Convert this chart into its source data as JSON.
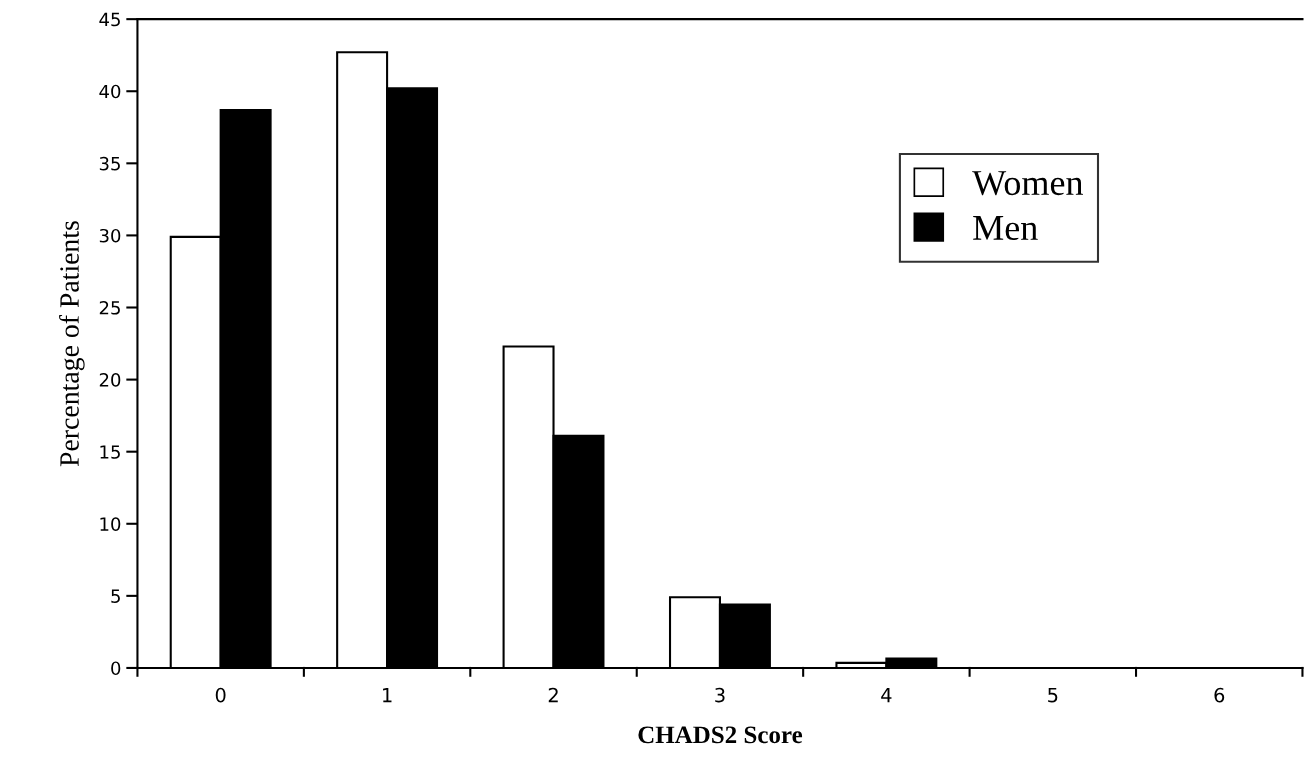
{
  "chart_data": {
    "type": "bar",
    "xlabel": "CHADS2 Score",
    "ylabel": "Percentage of Patients",
    "categories": [
      "0",
      "1",
      "2",
      "3",
      "4",
      "5",
      "6"
    ],
    "series": [
      {
        "name": "Women",
        "color": "#ffffff",
        "values": [
          29.9,
          42.7,
          22.3,
          4.9,
          0.35,
          0,
          0
        ]
      },
      {
        "name": "Men",
        "color": "#000000",
        "values": [
          38.7,
          40.2,
          16.1,
          4.4,
          0.65,
          0,
          0
        ]
      }
    ],
    "ylim": [
      0,
      45
    ],
    "yticks": [
      0,
      5,
      10,
      15,
      20,
      25,
      30,
      35,
      40,
      45
    ],
    "grid": false,
    "legend": "top right"
  }
}
